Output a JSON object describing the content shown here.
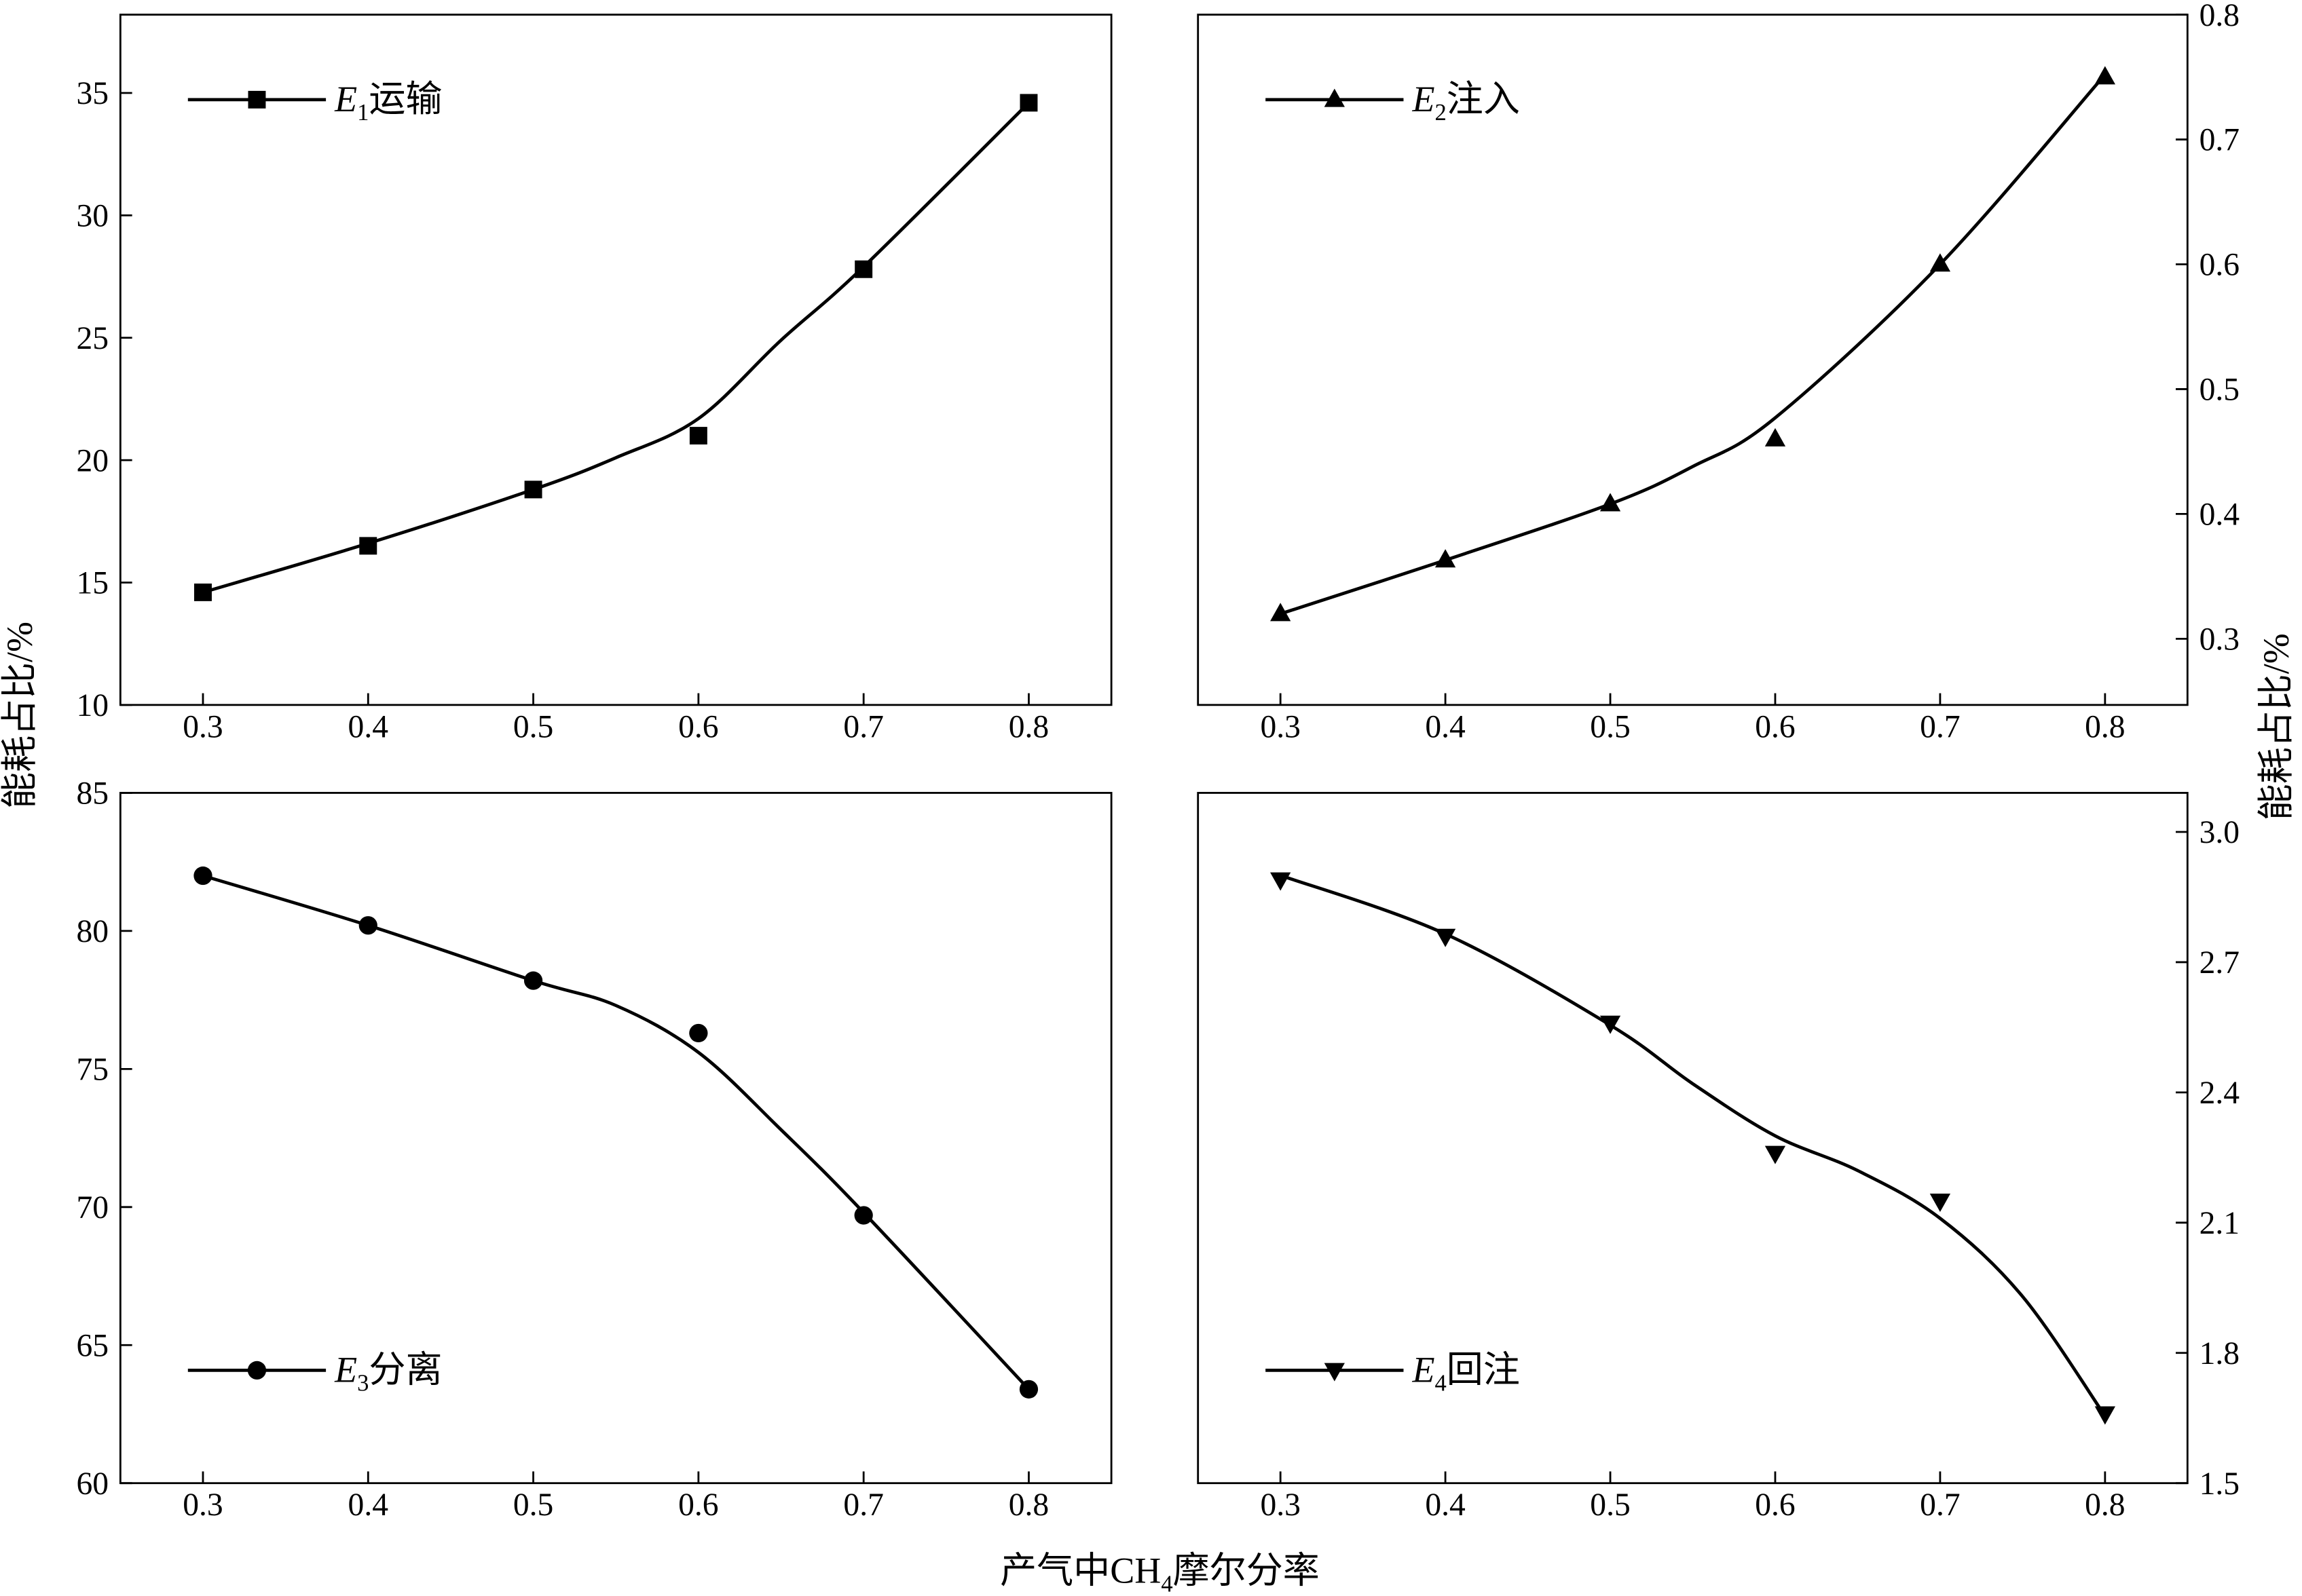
{
  "figure": {
    "ylabel_left": "能耗占比/%",
    "ylabel_right": "能耗占比/%",
    "xlabel": {
      "before": "产气中CH",
      "sub": "4",
      "after": "摩尔分率"
    },
    "colors": {
      "ink": "#000000",
      "background": "#ffffff"
    }
  },
  "chart_data": [
    {
      "type": "line",
      "y_axis_side": "left",
      "legend_position": "top-left",
      "grid": false,
      "xlim": [
        0.25,
        0.85
      ],
      "ylim": [
        10,
        38.2
      ],
      "xticks": [
        0.3,
        0.4,
        0.5,
        0.6,
        0.7,
        0.8
      ],
      "xtick_labels": [
        "0.3",
        "0.4",
        "0.5",
        "0.6",
        "0.7",
        "0.8"
      ],
      "yticks": [
        10,
        15,
        20,
        25,
        30,
        35
      ],
      "ytick_labels": [
        "10",
        "15",
        "20",
        "25",
        "30",
        "35"
      ],
      "series": [
        {
          "name_parts": {
            "var": "E",
            "sub": "1",
            "label": "运输"
          },
          "marker": "square",
          "x": [
            0.3,
            0.4,
            0.5,
            0.6,
            0.7,
            0.8
          ],
          "y": [
            14.6,
            16.5,
            18.8,
            21.0,
            27.8,
            34.6
          ],
          "fit_x": [
            0.3,
            0.4,
            0.5,
            0.55,
            0.6,
            0.65,
            0.7,
            0.8
          ],
          "fit_y": [
            14.6,
            16.6,
            18.8,
            20.1,
            21.7,
            24.9,
            27.9,
            34.6
          ]
        }
      ]
    },
    {
      "type": "line",
      "y_axis_side": "right",
      "legend_position": "top-left",
      "grid": false,
      "xlim": [
        0.25,
        0.85
      ],
      "ylim": [
        0.247,
        0.8
      ],
      "xticks": [
        0.3,
        0.4,
        0.5,
        0.6,
        0.7,
        0.8
      ],
      "xtick_labels": [
        "0.3",
        "0.4",
        "0.5",
        "0.6",
        "0.7",
        "0.8"
      ],
      "yticks": [
        0.3,
        0.4,
        0.5,
        0.6,
        0.7,
        0.8
      ],
      "ytick_labels": [
        "0.3",
        "0.4",
        "0.5",
        "0.6",
        "0.7",
        "0.8"
      ],
      "series": [
        {
          "name_parts": {
            "var": "E",
            "sub": "2",
            "label": "注入"
          },
          "marker": "triangle-up",
          "x": [
            0.3,
            0.4,
            0.5,
            0.6,
            0.7,
            0.8
          ],
          "y": [
            0.32,
            0.363,
            0.408,
            0.46,
            0.6,
            0.75
          ],
          "fit_x": [
            0.3,
            0.4,
            0.5,
            0.55,
            0.6,
            0.7,
            0.8
          ],
          "fit_y": [
            0.32,
            0.363,
            0.408,
            0.438,
            0.477,
            0.6,
            0.752
          ]
        }
      ]
    },
    {
      "type": "line",
      "y_axis_side": "left",
      "legend_position": "bottom-left",
      "grid": false,
      "xlim": [
        0.25,
        0.85
      ],
      "ylim": [
        60,
        85
      ],
      "xticks": [
        0.3,
        0.4,
        0.5,
        0.6,
        0.7,
        0.8
      ],
      "xtick_labels": [
        "0.3",
        "0.4",
        "0.5",
        "0.6",
        "0.7",
        "0.8"
      ],
      "yticks": [
        60,
        65,
        70,
        75,
        80,
        85
      ],
      "ytick_labels": [
        "60",
        "65",
        "70",
        "75",
        "80",
        "85"
      ],
      "series": [
        {
          "name_parts": {
            "var": "E",
            "sub": "3",
            "label": "分离"
          },
          "marker": "circle",
          "x": [
            0.3,
            0.4,
            0.5,
            0.6,
            0.7,
            0.8
          ],
          "y": [
            82.0,
            80.2,
            78.2,
            76.3,
            69.7,
            63.4
          ],
          "fit_x": [
            0.3,
            0.4,
            0.5,
            0.55,
            0.6,
            0.65,
            0.7,
            0.8
          ],
          "fit_y": [
            82.0,
            80.2,
            78.2,
            77.3,
            75.6,
            72.8,
            69.8,
            63.4
          ]
        }
      ]
    },
    {
      "type": "line",
      "y_axis_side": "right",
      "legend_position": "bottom-left",
      "grid": false,
      "xlim": [
        0.25,
        0.85
      ],
      "ylim": [
        1.5,
        3.09
      ],
      "xticks": [
        0.3,
        0.4,
        0.5,
        0.6,
        0.7,
        0.8
      ],
      "xtick_labels": [
        "0.3",
        "0.4",
        "0.5",
        "0.6",
        "0.7",
        "0.8"
      ],
      "yticks": [
        1.5,
        1.8,
        2.1,
        2.4,
        2.7,
        3.0
      ],
      "ytick_labels": [
        "1.5",
        "1.8",
        "2.1",
        "2.4",
        "2.7",
        "3.0"
      ],
      "series": [
        {
          "name_parts": {
            "var": "E",
            "sub": "4",
            "label": "回注"
          },
          "marker": "triangle-down",
          "x": [
            0.3,
            0.4,
            0.5,
            0.6,
            0.7,
            0.8
          ],
          "y": [
            2.89,
            2.76,
            2.56,
            2.26,
            2.15,
            1.66
          ],
          "fit_x": [
            0.3,
            0.4,
            0.5,
            0.55,
            0.6,
            0.65,
            0.7,
            0.75,
            0.8
          ],
          "fit_y": [
            2.9,
            2.765,
            2.555,
            2.42,
            2.3,
            2.22,
            2.11,
            1.93,
            1.655
          ]
        }
      ]
    }
  ]
}
